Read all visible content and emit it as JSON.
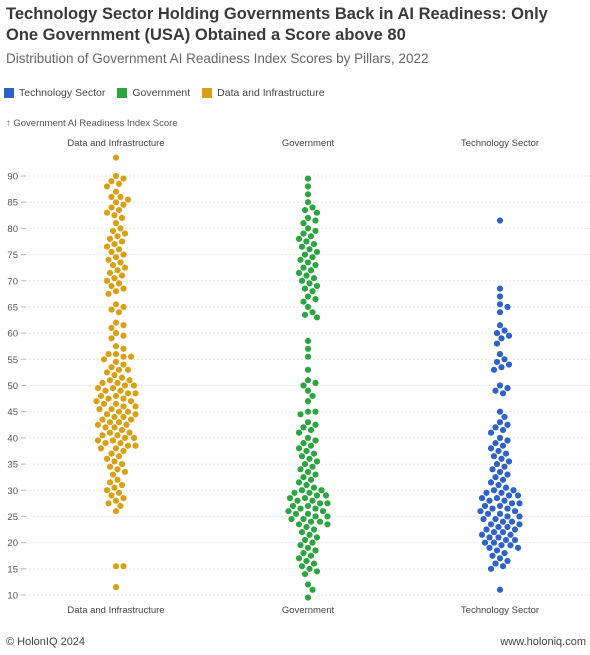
{
  "title": "Technology Sector Holding Governments Back in AI Readiness: Only One Government (USA) Obtained a Score above 80",
  "subtitle": "Distribution of Government AI Readiness Index Scores by Pillars, 2022",
  "legend": [
    {
      "label": "Technology Sector",
      "color": "#2e62c9"
    },
    {
      "label": "Government",
      "color": "#2aa540"
    },
    {
      "label": "Data and Infrastructure",
      "color": "#d9a015"
    }
  ],
  "footer": {
    "source": "© HolonIQ 2024",
    "site": "www.holoniq.com"
  },
  "chart_data": {
    "type": "scatter",
    "style": "beeswarm",
    "ylabel": "↑ Government AI Readiness Index Score",
    "ylim": [
      10,
      90
    ],
    "yticks": [
      10,
      15,
      20,
      25,
      30,
      35,
      40,
      45,
      50,
      55,
      60,
      65,
      70,
      75,
      80,
      85,
      90
    ],
    "categories": [
      "Data and Infrastructure",
      "Government",
      "Technology Sector"
    ],
    "series": [
      {
        "name": "Data and Infrastructure",
        "color": "#d9a015",
        "values": [
          93.5,
          90,
          89.5,
          89,
          88.5,
          88,
          87,
          86,
          86,
          85.5,
          85,
          84.5,
          84,
          83.5,
          83,
          82.5,
          82,
          81,
          80,
          79.5,
          79,
          78.5,
          78,
          77.5,
          77,
          76.5,
          76,
          75.5,
          75,
          74.5,
          74,
          73.5,
          73,
          72.5,
          72,
          71.5,
          71,
          70.5,
          70,
          69.5,
          69,
          68.5,
          68,
          67.5,
          65.5,
          65,
          64.5,
          64,
          62,
          61.5,
          61,
          60,
          59.5,
          59,
          57.5,
          57,
          56,
          56,
          55.5,
          55.5,
          55,
          54.5,
          54,
          53.5,
          53,
          53,
          52.5,
          52,
          51.5,
          51,
          51,
          50.5,
          50.5,
          50,
          50,
          49.5,
          49.5,
          49,
          49,
          48.5,
          48.5,
          48,
          48,
          47.5,
          47.5,
          47,
          47,
          46.5,
          46.5,
          46,
          46,
          45.5,
          45.5,
          45,
          45,
          44.5,
          44.5,
          44,
          44,
          43.5,
          43.5,
          43,
          43,
          42.5,
          42.5,
          42,
          42,
          41.5,
          41,
          41,
          40.5,
          40.5,
          40,
          40,
          39.5,
          39.5,
          39,
          39,
          38.5,
          38.5,
          38,
          38,
          37.5,
          37,
          36.5,
          36,
          35.5,
          35,
          34.5,
          34,
          33.5,
          33,
          32,
          31.5,
          31,
          30.5,
          30,
          29.5,
          29,
          28.5,
          28,
          27.5,
          27,
          26,
          15.5,
          15.5,
          11.5
        ]
      },
      {
        "name": "Government",
        "color": "#2aa540",
        "values": [
          89.5,
          88,
          86.5,
          85,
          84,
          83.5,
          83,
          82,
          81.5,
          81,
          80,
          79.5,
          79,
          78.5,
          78,
          77.5,
          77,
          76.5,
          76,
          75.5,
          75,
          74.5,
          74,
          73.5,
          73,
          72.5,
          72,
          71.5,
          71,
          70.5,
          70,
          69.5,
          69,
          68.5,
          68,
          67,
          66.5,
          66,
          65,
          64,
          63.5,
          63,
          58.5,
          57,
          55.5,
          53,
          51,
          50.5,
          50,
          49,
          48,
          47,
          45,
          45,
          44.5,
          43,
          42.5,
          42,
          41.5,
          41,
          40,
          39.5,
          39,
          38.5,
          38,
          37.5,
          37,
          36.5,
          36,
          35.5,
          35,
          34.5,
          34,
          33.5,
          33,
          32.5,
          32,
          31.5,
          31,
          30.5,
          30,
          30,
          29.5,
          29.5,
          29,
          29,
          28.5,
          28.5,
          28,
          28,
          27.5,
          27.5,
          27,
          27,
          26.5,
          26.5,
          26,
          26,
          25.5,
          25.5,
          25,
          25,
          24.5,
          24.5,
          24,
          24,
          23.5,
          23.5,
          23,
          22.5,
          22,
          21.5,
          21,
          20.5,
          20,
          19.5,
          19,
          18.5,
          18,
          17.5,
          17,
          16.5,
          16,
          15.5,
          15,
          14.5,
          14,
          12,
          11,
          9.5
        ]
      },
      {
        "name": "Technology Sector",
        "color": "#2e62c9",
        "values": [
          81.5,
          68.5,
          67,
          65.5,
          65,
          64,
          61.5,
          60.5,
          60,
          59.5,
          59,
          58,
          56,
          55,
          54.5,
          54,
          53.5,
          53,
          50,
          49.5,
          49,
          48.5,
          45,
          44,
          43,
          42.5,
          42,
          41.5,
          41,
          40,
          39.5,
          39,
          38.5,
          38,
          37.5,
          37,
          36.5,
          36,
          35.5,
          35,
          34.5,
          34,
          33.5,
          33,
          32.5,
          32,
          31.5,
          31,
          30.5,
          30,
          30,
          29.5,
          29.5,
          29,
          29,
          28.5,
          28.5,
          28,
          28,
          27.5,
          27.5,
          27,
          27,
          26.5,
          26.5,
          26,
          26,
          25.5,
          25.5,
          25,
          25,
          24.5,
          24.5,
          24,
          24,
          23.5,
          23.5,
          23,
          23,
          22.5,
          22.5,
          22,
          22,
          21.5,
          21.5,
          21,
          21,
          20.5,
          20.5,
          20,
          20,
          19.5,
          19.5,
          19,
          19,
          18.5,
          18,
          17.5,
          17,
          16.5,
          16,
          15.5,
          15,
          11
        ]
      }
    ]
  }
}
